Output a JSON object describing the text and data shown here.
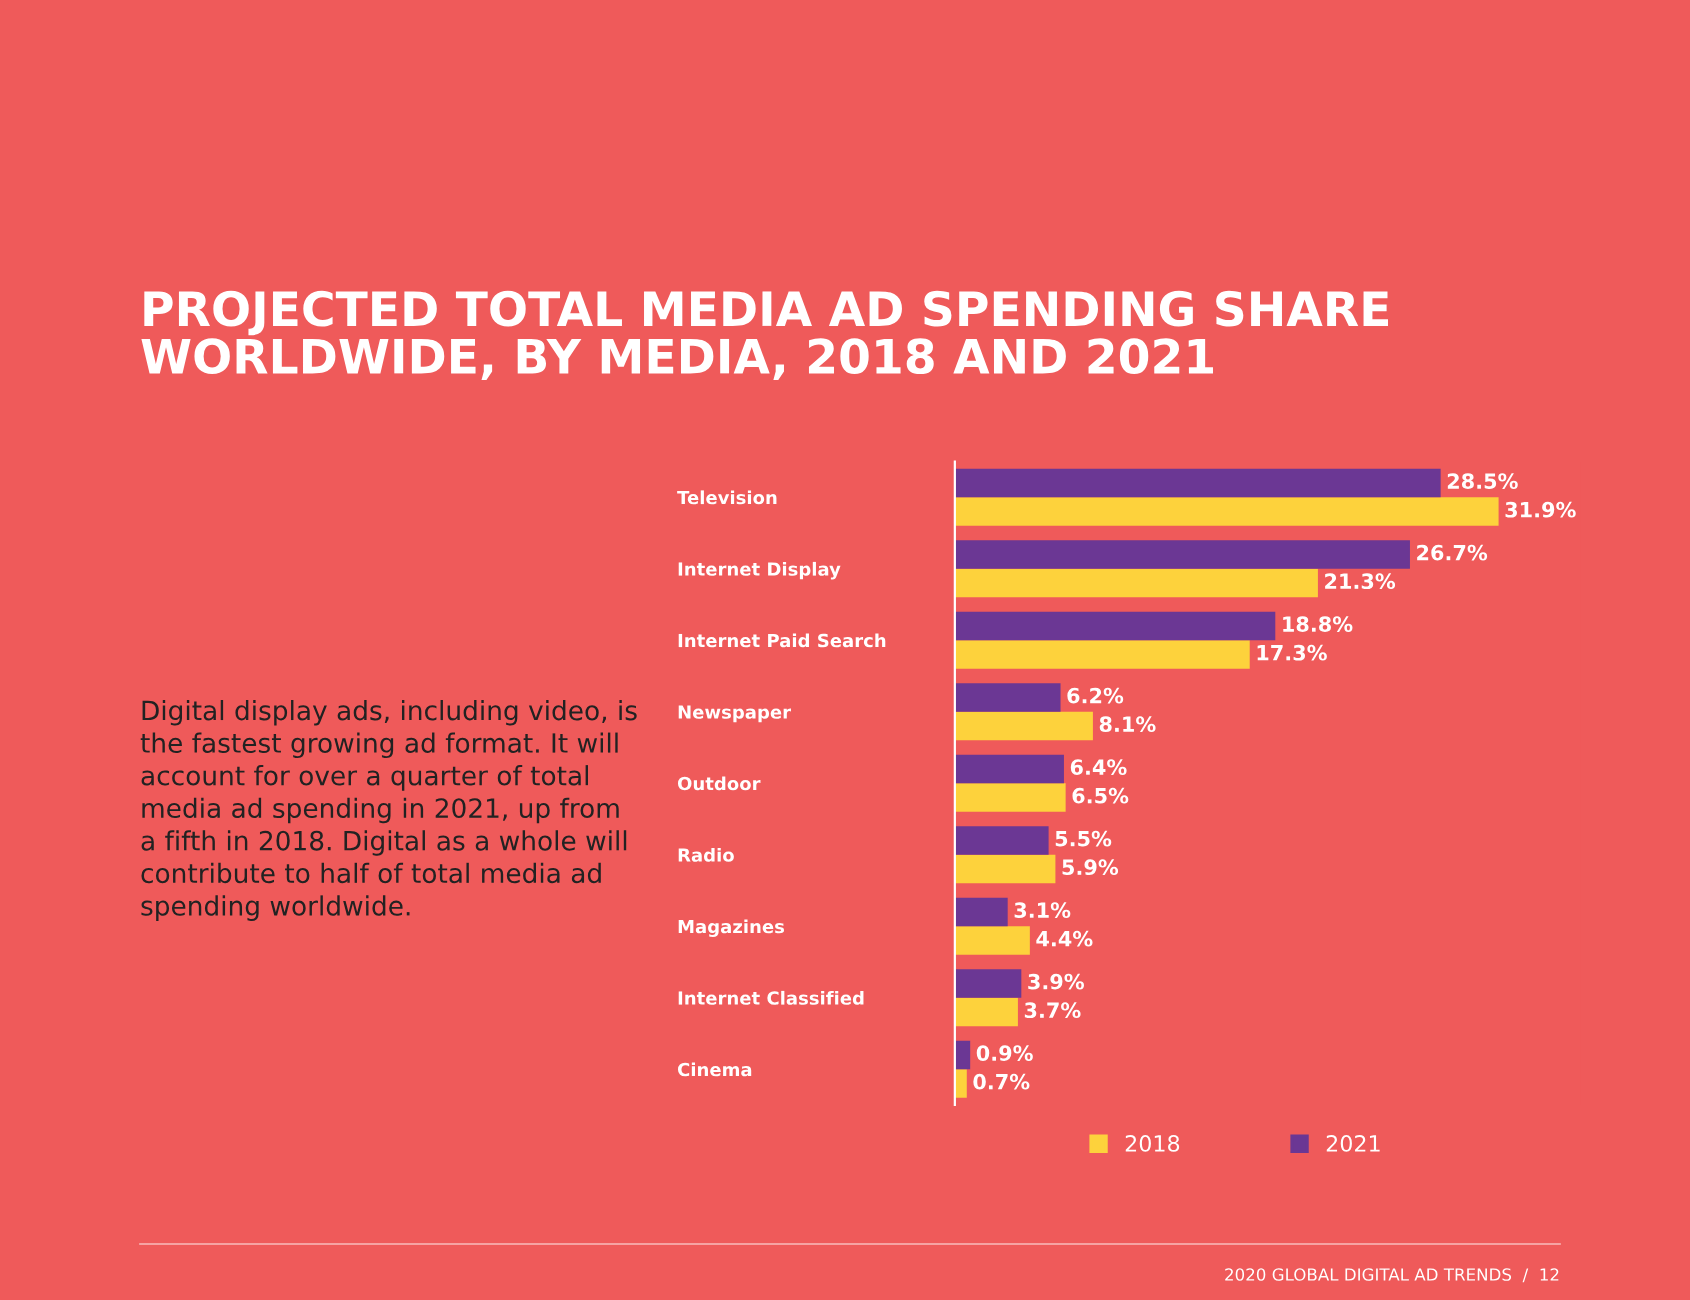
{
  "chart_data": {
    "type": "bar",
    "orientation": "horizontal",
    "title": "PROJECTED TOTAL MEDIA AD SPENDING SHARE\nWORLDWIDE, BY MEDIA, 2018 AND 2021",
    "categories": [
      "Television",
      "Internet Display",
      "Internet Paid Search",
      "Newspaper",
      "Outdoor",
      "Radio",
      "Magazines",
      "Internet Classified",
      "Cinema"
    ],
    "series": [
      {
        "name": "2018",
        "color": "#fdd23c",
        "values": [
          31.9,
          21.3,
          17.3,
          8.1,
          6.5,
          5.9,
          4.4,
          3.7,
          0.7
        ],
        "value_labels": [
          "31.9%",
          "21.3%",
          "17.3%",
          "8.1%",
          "6.5%",
          "5.9%",
          "4.4%",
          "3.7%",
          "0.7%"
        ]
      },
      {
        "name": "2021",
        "color": "#6b3794",
        "values": [
          28.5,
          26.7,
          18.8,
          6.2,
          6.4,
          5.5,
          3.1,
          3.9,
          0.9
        ],
        "value_labels": [
          "28.5%",
          "26.7%",
          "18.8%",
          "6.2%",
          "6.4%",
          "5.5%",
          "3.1%",
          "3.9%",
          "0.9%"
        ]
      }
    ],
    "legend": "bottom",
    "grid": false,
    "tick_labels": "y",
    "annotations": [
      "Digital display ads, including video, is the fastest growing ad format. It will account for over a quarter of total media ad spending in 2021, up from a fifth in 2018. Digital as a whole will contribute to half of total media ad spending worldwide.",
      "2020 GLOBAL DIGITAL AD TRENDS  /  12"
    ]
  }
}
